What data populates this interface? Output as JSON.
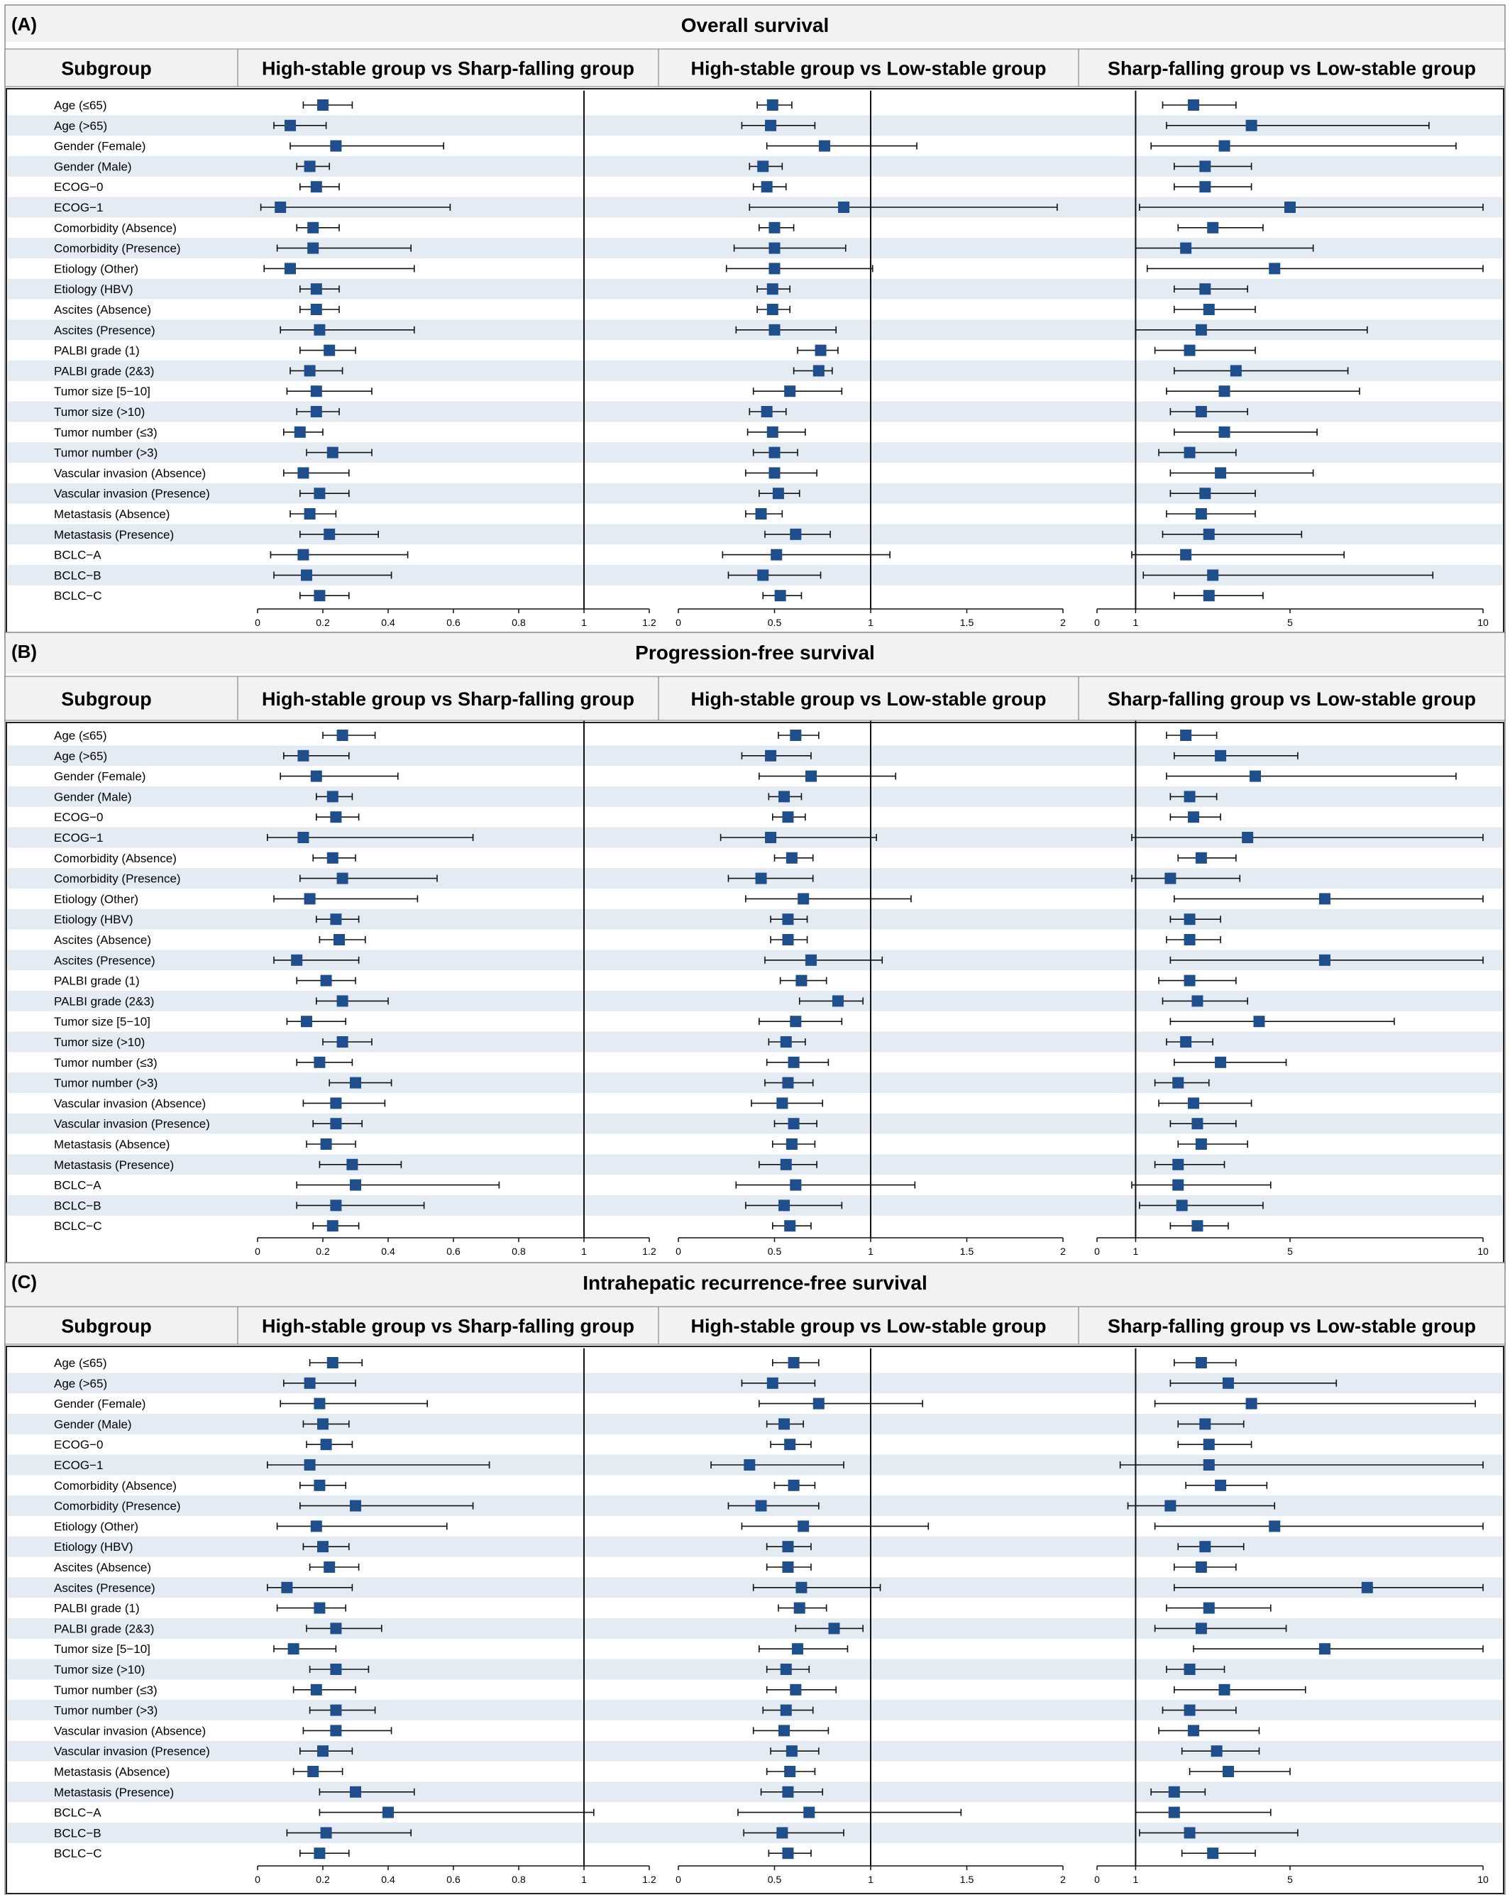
{
  "subgroups": [
    "Age (≤65)",
    "Age (>65)",
    "Gender (Female)",
    "Gender (Male)",
    "ECOG−0",
    "ECOG−1",
    "Comorbidity (Absence)",
    "Comorbidity (Presence)",
    "Etiology (Other)",
    "Etiology (HBV)",
    "Ascites (Absence)",
    "Ascites (Presence)",
    "PALBI grade (1)",
    "PALBI grade (2&3)",
    "Tumor size [5−10]",
    "Tumor size (>10)",
    "Tumor number (≤3)",
    "Tumor number (>3)",
    "Vascular invasion (Absence)",
    "Vascular invasion (Presence)",
    "Metastasis (Absence)",
    "Metastasis (Presence)",
    "BCLC−A",
    "BCLC−B",
    "BCLC−C"
  ],
  "header": {
    "subgroup_label": "Subgroup"
  },
  "comparisons": [
    "High-stable group vs Sharp-falling group",
    "High-stable group vs Low-stable group",
    "Sharp-falling group vs Low-stable group"
  ],
  "axes": [
    {
      "ticks": [
        "0",
        "0.2",
        "0.4",
        "0.6",
        "0.8",
        "1",
        "1.2"
      ],
      "tick_values": [
        0,
        0.2,
        0.4,
        0.6,
        0.8,
        1,
        1.2
      ],
      "range": [
        0,
        1.2
      ],
      "reference": 1
    },
    {
      "ticks": [
        "0",
        "0.5",
        "1",
        "1.5",
        "2"
      ],
      "tick_values": [
        0,
        0.5,
        1,
        1.5,
        2
      ],
      "range": [
        0,
        2
      ],
      "reference": 1
    },
    {
      "ticks": [
        "0",
        "1",
        "5",
        "10"
      ],
      "tick_values": [
        0,
        1,
        5,
        10
      ],
      "range": [
        0,
        10
      ],
      "reference": 1
    }
  ],
  "colors": {
    "marker": "#1f4e8c",
    "stripe": "#e5ebf3",
    "header_bg": "#f2f2f2",
    "line": "#111111"
  },
  "chart_data": [
    {
      "type": "forest",
      "panel": "(A)",
      "title": "Overall survival",
      "series": [
        {
          "name": "High-stable group vs Sharp-falling group",
          "estimate": [
            0.2,
            0.1,
            0.24,
            0.16,
            0.18,
            0.07,
            0.17,
            0.17,
            0.1,
            0.18,
            0.18,
            0.19,
            0.22,
            0.16,
            0.18,
            0.18,
            0.13,
            0.23,
            0.14,
            0.19,
            0.16,
            0.22,
            0.14,
            0.15,
            0.19
          ],
          "lower": [
            0.14,
            0.05,
            0.1,
            0.12,
            0.13,
            0.01,
            0.12,
            0.06,
            0.02,
            0.13,
            0.13,
            0.07,
            0.13,
            0.1,
            0.09,
            0.12,
            0.08,
            0.15,
            0.08,
            0.13,
            0.1,
            0.13,
            0.04,
            0.05,
            0.13
          ],
          "upper": [
            0.29,
            0.21,
            0.57,
            0.22,
            0.25,
            0.59,
            0.25,
            0.47,
            0.48,
            0.25,
            0.25,
            0.48,
            0.3,
            0.26,
            0.35,
            0.25,
            0.2,
            0.35,
            0.28,
            0.28,
            0.24,
            0.37,
            0.46,
            0.41,
            0.28
          ]
        },
        {
          "name": "High-stable group vs Low-stable group",
          "estimate": [
            0.49,
            0.48,
            0.76,
            0.44,
            0.46,
            0.86,
            0.5,
            0.5,
            0.5,
            0.49,
            0.49,
            0.5,
            0.74,
            0.73,
            0.58,
            0.46,
            0.49,
            0.5,
            0.5,
            0.52,
            0.43,
            0.61,
            0.51,
            0.44,
            0.53
          ],
          "lower": [
            0.41,
            0.33,
            0.46,
            0.37,
            0.39,
            0.37,
            0.42,
            0.29,
            0.25,
            0.41,
            0.41,
            0.3,
            0.62,
            0.6,
            0.39,
            0.37,
            0.36,
            0.39,
            0.35,
            0.42,
            0.35,
            0.45,
            0.23,
            0.26,
            0.44
          ],
          "upper": [
            0.59,
            0.71,
            1.24,
            0.54,
            0.56,
            1.97,
            0.6,
            0.87,
            1.01,
            0.58,
            0.58,
            0.82,
            0.83,
            0.8,
            0.85,
            0.56,
            0.66,
            0.62,
            0.72,
            0.63,
            0.54,
            0.79,
            1.1,
            0.74,
            0.64
          ]
        },
        {
          "name": "Sharp-falling group vs Low-stable group",
          "estimate": [
            2.5,
            4.0,
            3.3,
            2.8,
            2.8,
            5.0,
            3.0,
            2.3,
            4.6,
            2.8,
            2.9,
            2.7,
            2.4,
            3.6,
            3.3,
            2.7,
            3.3,
            2.4,
            3.2,
            2.8,
            2.7,
            2.9,
            2.3,
            3.0,
            2.9
          ],
          "lower": [
            1.7,
            1.8,
            1.4,
            2.0,
            2.0,
            1.1,
            2.1,
            1.0,
            1.3,
            2.0,
            2.0,
            1.0,
            1.5,
            2.0,
            1.8,
            1.9,
            2.0,
            1.6,
            1.9,
            1.9,
            1.8,
            1.7,
            0.9,
            1.2,
            2.0
          ],
          "upper": [
            3.6,
            8.6,
            9.3,
            4.0,
            4.0,
            10.0,
            4.3,
            5.6,
            10.0,
            3.9,
            4.1,
            7.0,
            4.1,
            6.5,
            6.8,
            3.9,
            5.7,
            3.6,
            5.6,
            4.1,
            4.1,
            5.3,
            6.4,
            8.7,
            4.3
          ]
        }
      ]
    },
    {
      "type": "forest",
      "panel": "(B)",
      "title": "Progression-free survival",
      "series": [
        {
          "name": "High-stable group vs Sharp-falling group",
          "estimate": [
            0.26,
            0.14,
            0.18,
            0.23,
            0.24,
            0.14,
            0.23,
            0.26,
            0.16,
            0.24,
            0.25,
            0.12,
            0.21,
            0.26,
            0.15,
            0.26,
            0.19,
            0.3,
            0.24,
            0.24,
            0.21,
            0.29,
            0.3,
            0.24,
            0.23
          ],
          "lower": [
            0.2,
            0.08,
            0.07,
            0.18,
            0.18,
            0.03,
            0.17,
            0.13,
            0.05,
            0.18,
            0.19,
            0.05,
            0.12,
            0.18,
            0.09,
            0.2,
            0.12,
            0.22,
            0.14,
            0.17,
            0.15,
            0.19,
            0.12,
            0.12,
            0.17
          ],
          "upper": [
            0.36,
            0.28,
            0.43,
            0.29,
            0.31,
            0.66,
            0.3,
            0.55,
            0.49,
            0.31,
            0.33,
            0.31,
            0.3,
            0.4,
            0.27,
            0.35,
            0.29,
            0.41,
            0.39,
            0.32,
            0.3,
            0.44,
            0.74,
            0.51,
            0.31
          ]
        },
        {
          "name": "High-stable group vs Low-stable group",
          "estimate": [
            0.61,
            0.48,
            0.69,
            0.55,
            0.57,
            0.48,
            0.59,
            0.43,
            0.65,
            0.57,
            0.57,
            0.69,
            0.64,
            0.83,
            0.61,
            0.56,
            0.6,
            0.57,
            0.54,
            0.6,
            0.59,
            0.56,
            0.61,
            0.55,
            0.58
          ],
          "lower": [
            0.52,
            0.33,
            0.42,
            0.47,
            0.49,
            0.22,
            0.5,
            0.26,
            0.35,
            0.48,
            0.48,
            0.45,
            0.53,
            0.63,
            0.42,
            0.47,
            0.46,
            0.45,
            0.38,
            0.5,
            0.49,
            0.42,
            0.3,
            0.35,
            0.49
          ],
          "upper": [
            0.73,
            0.69,
            1.13,
            0.64,
            0.66,
            1.03,
            0.7,
            0.7,
            1.21,
            0.67,
            0.67,
            1.06,
            0.77,
            0.96,
            0.85,
            0.66,
            0.78,
            0.7,
            0.75,
            0.72,
            0.71,
            0.72,
            1.23,
            0.85,
            0.69
          ]
        },
        {
          "name": "Sharp-falling group vs Low-stable group",
          "estimate": [
            2.3,
            3.2,
            4.1,
            2.4,
            2.5,
            3.9,
            2.7,
            1.9,
            5.9,
            2.4,
            2.4,
            5.9,
            2.4,
            2.6,
            4.2,
            2.3,
            3.2,
            2.1,
            2.5,
            2.6,
            2.7,
            2.1,
            2.1,
            2.2,
            2.6
          ],
          "lower": [
            1.8,
            2.0,
            1.8,
            1.9,
            1.9,
            0.9,
            2.1,
            0.9,
            2.0,
            1.9,
            1.8,
            1.9,
            1.6,
            1.7,
            1.9,
            1.8,
            2.0,
            1.5,
            1.6,
            1.9,
            2.1,
            1.5,
            0.9,
            1.1,
            1.9
          ],
          "upper": [
            3.1,
            5.2,
            9.3,
            3.1,
            3.2,
            10.0,
            3.6,
            3.7,
            10.0,
            3.2,
            3.2,
            10.0,
            3.6,
            3.9,
            7.7,
            3.0,
            4.9,
            2.9,
            4.0,
            3.6,
            3.9,
            3.3,
            4.5,
            4.3,
            3.4
          ]
        }
      ]
    },
    {
      "type": "forest",
      "panel": "(C)",
      "title": "Intrahepatic recurrence-free survival",
      "series": [
        {
          "name": "High-stable group vs Sharp-falling group",
          "estimate": [
            0.23,
            0.16,
            0.19,
            0.2,
            0.21,
            0.16,
            0.19,
            0.3,
            0.18,
            0.2,
            0.22,
            0.09,
            0.19,
            0.24,
            0.11,
            0.24,
            0.18,
            0.24,
            0.24,
            0.2,
            0.17,
            0.3,
            0.4,
            0.21,
            0.19
          ],
          "lower": [
            0.16,
            0.08,
            0.07,
            0.14,
            0.15,
            0.03,
            0.13,
            0.13,
            0.06,
            0.14,
            0.16,
            0.03,
            0.06,
            0.15,
            0.05,
            0.16,
            0.11,
            0.16,
            0.14,
            0.13,
            0.11,
            0.19,
            0.19,
            0.09,
            0.13
          ],
          "upper": [
            0.32,
            0.3,
            0.52,
            0.28,
            0.29,
            0.71,
            0.27,
            0.66,
            0.58,
            0.28,
            0.31,
            0.29,
            0.27,
            0.38,
            0.24,
            0.34,
            0.3,
            0.36,
            0.41,
            0.29,
            0.26,
            0.48,
            1.03,
            0.47,
            0.28
          ]
        },
        {
          "name": "High-stable group vs Low-stable group",
          "estimate": [
            0.6,
            0.49,
            0.73,
            0.55,
            0.58,
            0.37,
            0.6,
            0.43,
            0.65,
            0.57,
            0.57,
            0.64,
            0.63,
            0.81,
            0.62,
            0.56,
            0.61,
            0.56,
            0.55,
            0.59,
            0.58,
            0.57,
            0.68,
            0.54,
            0.57
          ],
          "lower": [
            0.49,
            0.33,
            0.42,
            0.46,
            0.48,
            0.17,
            0.5,
            0.26,
            0.33,
            0.46,
            0.46,
            0.39,
            0.52,
            0.61,
            0.42,
            0.46,
            0.46,
            0.44,
            0.39,
            0.48,
            0.46,
            0.43,
            0.31,
            0.34,
            0.47
          ],
          "upper": [
            0.73,
            0.71,
            1.27,
            0.65,
            0.69,
            0.86,
            0.71,
            0.73,
            1.3,
            0.69,
            0.69,
            1.05,
            0.77,
            0.96,
            0.88,
            0.68,
            0.82,
            0.7,
            0.78,
            0.73,
            0.71,
            0.75,
            1.47,
            0.86,
            0.69
          ]
        },
        {
          "name": "Sharp-falling group vs Low-stable group",
          "estimate": [
            2.7,
            3.4,
            4.0,
            2.8,
            2.9,
            2.9,
            3.2,
            1.9,
            4.6,
            2.8,
            2.7,
            7.0,
            2.9,
            2.7,
            5.9,
            2.4,
            3.3,
            2.4,
            2.5,
            3.1,
            3.4,
            2.0,
            2.0,
            2.4,
            3.0
          ],
          "lower": [
            2.0,
            1.9,
            1.5,
            2.1,
            2.1,
            0.6,
            2.3,
            0.8,
            1.5,
            2.1,
            2.0,
            2.0,
            1.8,
            1.5,
            2.5,
            1.8,
            2.0,
            1.7,
            1.6,
            2.2,
            2.4,
            1.4,
            1.0,
            1.1,
            2.2
          ],
          "upper": [
            3.6,
            6.2,
            9.8,
            3.8,
            4.0,
            10.0,
            4.4,
            4.6,
            10.0,
            3.8,
            3.6,
            10.0,
            4.5,
            4.9,
            10.0,
            3.3,
            5.4,
            3.6,
            4.2,
            4.2,
            5.0,
            2.8,
            4.5,
            5.2,
            4.1
          ]
        }
      ]
    }
  ]
}
